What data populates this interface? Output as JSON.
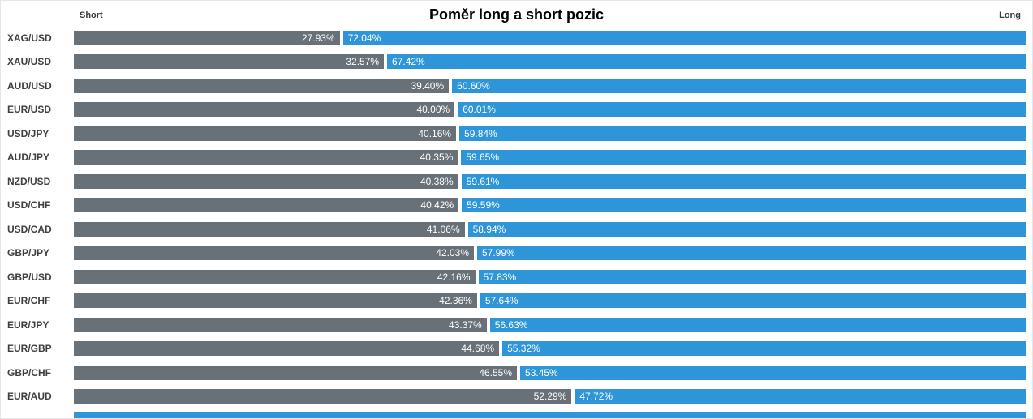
{
  "header": {
    "title": "Poměr long a short pozic",
    "short_label": "Short",
    "long_label": "Long"
  },
  "colors": {
    "short_bar": "#687078",
    "long_bar": "#2e95d8",
    "bar_text": "#ffffff",
    "pair_label": "#3f3f3f",
    "background": "#ffffff",
    "border": "#e7e7e7"
  },
  "chart_data": {
    "type": "bar",
    "orientation": "horizontal",
    "stacked": true,
    "title": "Poměr long a short pozic",
    "xlabel": "",
    "ylabel": "",
    "xlim": [
      0,
      100
    ],
    "grid": false,
    "legend": [
      "Short",
      "Long"
    ],
    "legend_position": "top",
    "value_format": "percent",
    "categories": [
      "XAG/USD",
      "XAU/USD",
      "AUD/USD",
      "EUR/USD",
      "USD/JPY",
      "AUD/JPY",
      "NZD/USD",
      "USD/CHF",
      "USD/CAD",
      "GBP/JPY",
      "GBP/USD",
      "EUR/CHF",
      "EUR/JPY",
      "EUR/GBP",
      "GBP/CHF",
      "EUR/AUD"
    ],
    "series": [
      {
        "name": "Short",
        "color": "#687078",
        "values": [
          27.93,
          32.57,
          39.4,
          40.0,
          40.16,
          40.35,
          40.38,
          40.42,
          41.06,
          42.03,
          42.16,
          42.36,
          43.37,
          44.68,
          46.55,
          52.29
        ],
        "labels": [
          "27.93%",
          "32.57%",
          "39.40%",
          "40.00%",
          "40.16%",
          "40.35%",
          "40.38%",
          "40.42%",
          "41.06%",
          "42.03%",
          "42.16%",
          "42.36%",
          "43.37%",
          "44.68%",
          "46.55%",
          "52.29%"
        ]
      },
      {
        "name": "Long",
        "color": "#2e95d8",
        "values": [
          72.04,
          67.42,
          60.6,
          60.01,
          59.84,
          59.65,
          59.61,
          59.59,
          58.94,
          57.99,
          57.83,
          57.64,
          56.63,
          55.32,
          53.45,
          47.72
        ],
        "labels": [
          "72.04%",
          "67.42%",
          "60.60%",
          "60.01%",
          "59.84%",
          "59.65%",
          "59.61%",
          "59.59%",
          "58.94%",
          "57.99%",
          "57.83%",
          "57.64%",
          "56.63%",
          "55.32%",
          "53.45%",
          "47.72%"
        ]
      }
    ]
  }
}
